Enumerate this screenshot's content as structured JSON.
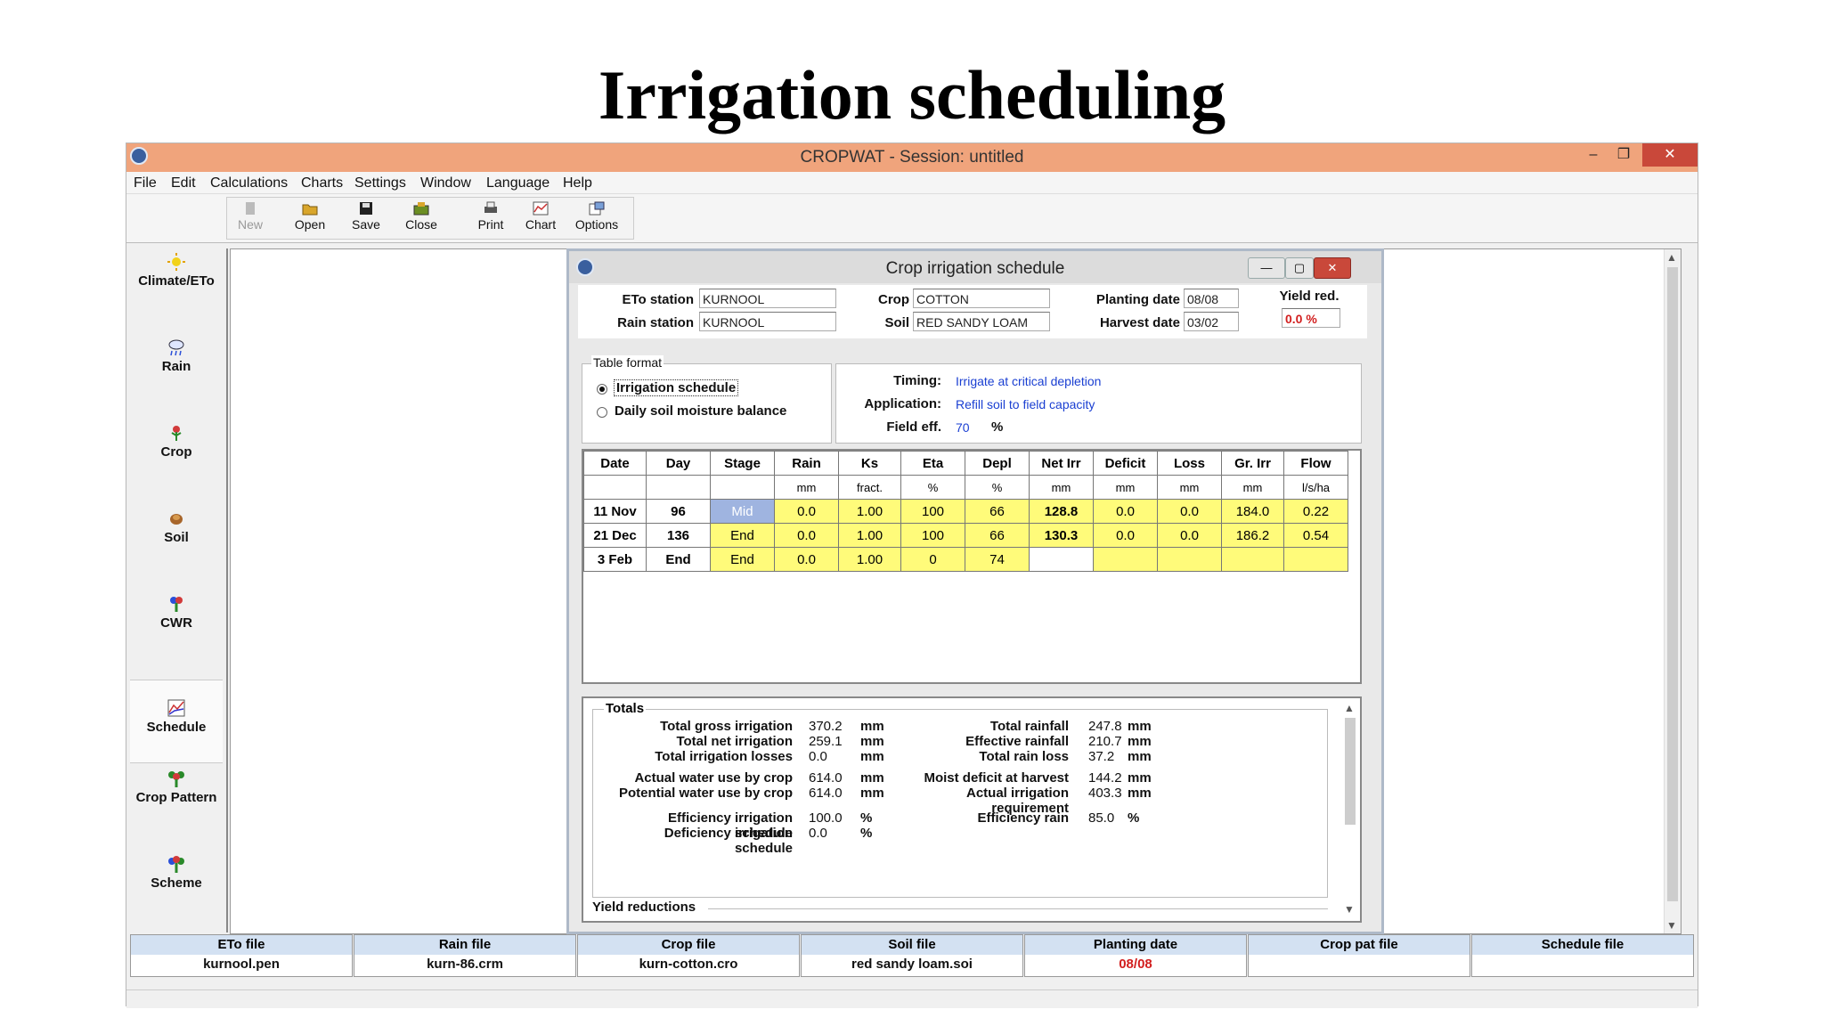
{
  "slide_title": "Irrigation scheduling",
  "window": {
    "title": "CROPWAT - Session: untitled",
    "minimize": "–",
    "restore": "❐",
    "close": "✕"
  },
  "menu": [
    "File",
    "Edit",
    "Calculations",
    "Charts",
    "Settings",
    "Window",
    "Language",
    "Help"
  ],
  "toolbar": {
    "new": "New",
    "open": "Open",
    "save": "Save",
    "close": "Close",
    "print": "Print",
    "chart": "Chart",
    "options": "Options"
  },
  "sidebar": [
    "Climate/ETo",
    "Rain",
    "Crop",
    "Soil",
    "CWR",
    "Schedule",
    "Crop Pattern",
    "Scheme"
  ],
  "sidebar_active": "Schedule",
  "child": {
    "title": "Crop irrigation schedule",
    "eto_station_label": "ETo station",
    "eto_station": "KURNOOL",
    "rain_station_label": "Rain station",
    "rain_station": "KURNOOL",
    "crop_label": "Crop",
    "crop": "COTTON",
    "soil_label": "Soil",
    "soil": "RED SANDY LOAM",
    "planting_label": "Planting date",
    "planting": "08/08",
    "harvest_label": "Harvest date",
    "harvest": "03/02",
    "yield_label": "Yield red.",
    "yield": "0.0 %",
    "table_format": "Table format",
    "opt_irrigation": "Irrigation schedule",
    "opt_daily": "Daily soil moisture balance",
    "timing_label": "Timing:",
    "timing": "Irrigate at critical depletion",
    "application_label": "Application:",
    "application": "Refill soil to field capacity",
    "field_eff_label": "Field eff.",
    "field_eff": "70",
    "field_eff_unit": "%"
  },
  "table": {
    "headers": [
      "Date",
      "Day",
      "Stage",
      "Rain",
      "Ks",
      "Eta",
      "Depl",
      "Net Irr",
      "Deficit",
      "Loss",
      "Gr. Irr",
      "Flow"
    ],
    "units": [
      "",
      "",
      "",
      "mm",
      "fract.",
      "%",
      "%",
      "mm",
      "mm",
      "mm",
      "mm",
      "l/s/ha"
    ],
    "rows": [
      [
        "11 Nov",
        "96",
        "Mid",
        "0.0",
        "1.00",
        "100",
        "66",
        "128.8",
        "0.0",
        "0.0",
        "184.0",
        "0.22"
      ],
      [
        "21 Dec",
        "136",
        "End",
        "0.0",
        "1.00",
        "100",
        "66",
        "130.3",
        "0.0",
        "0.0",
        "186.2",
        "0.54"
      ],
      [
        "3 Feb",
        "End",
        "End",
        "0.0",
        "1.00",
        "0",
        "74",
        "",
        "",
        "",
        "",
        ""
      ]
    ]
  },
  "totals": {
    "title": "Totals",
    "left": [
      {
        "label": "Total gross irrigation",
        "value": "370.2",
        "unit": "mm"
      },
      {
        "label": "Total net irrigation",
        "value": "259.1",
        "unit": "mm"
      },
      {
        "label": "Total irrigation losses",
        "value": "0.0",
        "unit": "mm"
      },
      {
        "label": "Actual water use by crop",
        "value": "614.0",
        "unit": "mm"
      },
      {
        "label": "Potential water use by crop",
        "value": "614.0",
        "unit": "mm"
      },
      {
        "label": "Efficiency irrigation schedule",
        "value": "100.0",
        "unit": "%"
      },
      {
        "label": "Deficiency irrigation schedule",
        "value": "0.0",
        "unit": "%"
      }
    ],
    "right": [
      {
        "label": "Total rainfall",
        "value": "247.8",
        "unit": "mm"
      },
      {
        "label": "Effective rainfall",
        "value": "210.7",
        "unit": "mm"
      },
      {
        "label": "Total rain loss",
        "value": "37.2",
        "unit": "mm"
      },
      {
        "label": "Moist deficit at harvest",
        "value": "144.2",
        "unit": "mm"
      },
      {
        "label": "Actual irrigation requirement",
        "value": "403.3",
        "unit": "mm"
      },
      {
        "label": "Efficiency rain",
        "value": "85.0",
        "unit": "%"
      }
    ],
    "yield_reductions": "Yield reductions"
  },
  "status": [
    {
      "head": "ETo file",
      "value": "kurnool.pen"
    },
    {
      "head": "Rain file",
      "value": "kurn-86.crm"
    },
    {
      "head": "Crop file",
      "value": "kurn-cotton.cro"
    },
    {
      "head": "Soil file",
      "value": "red sandy loam.soi"
    },
    {
      "head": "Planting date",
      "value": "08/08"
    },
    {
      "head": "Crop pat file",
      "value": ""
    },
    {
      "head": "Schedule file",
      "value": ""
    }
  ],
  "colors": {
    "titlebar": "#f0a47c",
    "highlight": "#fffb7a",
    "stage_mid": "#9fb4e0",
    "red_value": "#d21f1f",
    "link_blue": "#1a3fd2"
  }
}
